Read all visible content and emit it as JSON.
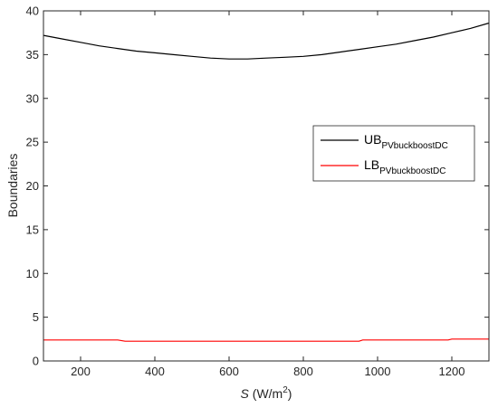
{
  "chart_data": {
    "type": "line",
    "title": "",
    "xlabel_var": "S",
    "xlabel_unit_base": "(W/m",
    "xlabel_unit_exp": "2",
    "xlabel_unit_end": ")",
    "ylabel": "Boundaries",
    "xlim": [
      100,
      1300
    ],
    "ylim": [
      0,
      40
    ],
    "xticks": [
      200,
      400,
      600,
      800,
      1000,
      1200
    ],
    "yticks": [
      0,
      5,
      10,
      15,
      20,
      25,
      30,
      35,
      40
    ],
    "grid": false,
    "legend_position": "right",
    "series": [
      {
        "name_main": "UB",
        "name_sub": "PVbuckboostDC",
        "color": "#000000",
        "x": [
          100,
          150,
          200,
          250,
          300,
          350,
          400,
          450,
          500,
          550,
          600,
          650,
          700,
          750,
          800,
          850,
          900,
          950,
          1000,
          1050,
          1100,
          1150,
          1200,
          1250,
          1300
        ],
        "y": [
          37.2,
          36.8,
          36.4,
          36.0,
          35.7,
          35.4,
          35.2,
          35.0,
          34.8,
          34.6,
          34.5,
          34.5,
          34.6,
          34.7,
          34.8,
          35.0,
          35.3,
          35.6,
          35.9,
          36.2,
          36.6,
          37.0,
          37.5,
          38.0,
          38.6
        ]
      },
      {
        "name_main": "LB",
        "name_sub": "PVbuckboostDC",
        "color": "#ff0000",
        "x": [
          100,
          200,
          300,
          320,
          400,
          500,
          600,
          700,
          800,
          900,
          950,
          960,
          1000,
          1100,
          1190,
          1200,
          1300
        ],
        "y": [
          2.4,
          2.4,
          2.4,
          2.25,
          2.25,
          2.25,
          2.25,
          2.25,
          2.25,
          2.25,
          2.25,
          2.4,
          2.4,
          2.4,
          2.4,
          2.5,
          2.5
        ]
      }
    ]
  }
}
